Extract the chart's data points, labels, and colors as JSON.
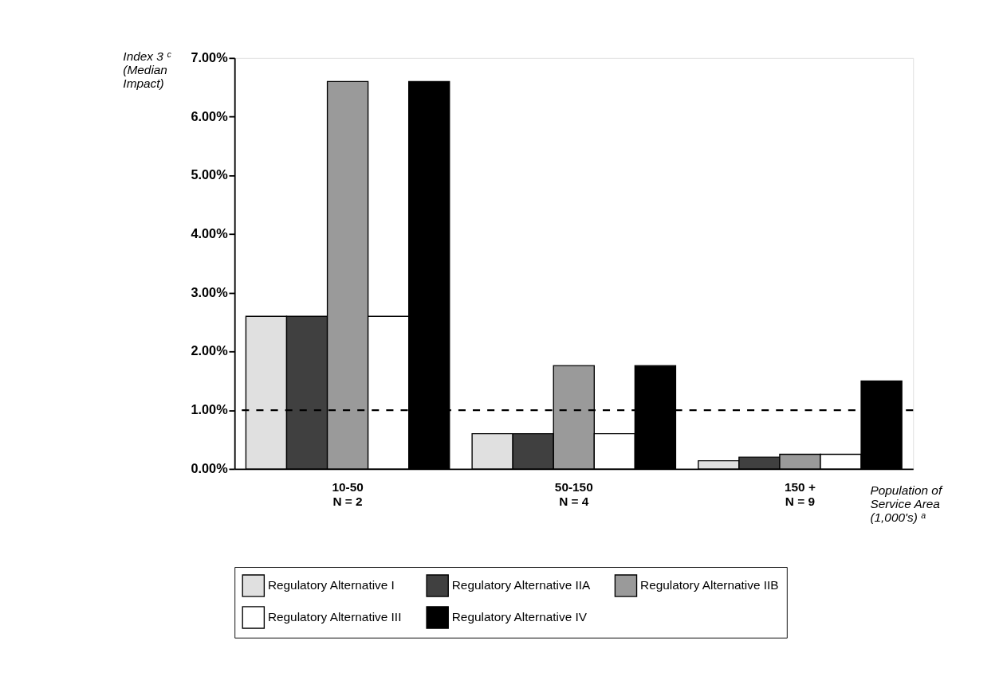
{
  "chart_data": {
    "type": "bar",
    "ylabel": "Index 3 ᶜ\n(Median\nImpact)",
    "xlabel": "Population of\nService Area\n(1,000's) ᵃ",
    "categories": [
      "10-50\nN = 2",
      "50-150\nN = 4",
      "150 +\nN = 9"
    ],
    "series": [
      {
        "name": "Regulatory Alternative I",
        "color": "#e0e0e0",
        "values": [
          2.6,
          0.6,
          0.14
        ]
      },
      {
        "name": "Regulatory Alternative IIA",
        "color": "#404040",
        "values": [
          2.6,
          0.6,
          0.2
        ]
      },
      {
        "name": "Regulatory Alternative IIB",
        "color": "#9a9a9a",
        "values": [
          6.6,
          1.76,
          0.25
        ]
      },
      {
        "name": "Regulatory Alternative III",
        "color": "#ffffff",
        "values": [
          2.6,
          0.6,
          0.25
        ]
      },
      {
        "name": "Regulatory Alternative IV",
        "color": "#000000",
        "values": [
          6.6,
          1.76,
          1.5
        ]
      }
    ],
    "ylim": [
      0,
      7
    ],
    "yticks": [
      {
        "value": 0,
        "label": "0.00%"
      },
      {
        "value": 1,
        "label": "1.00%"
      },
      {
        "value": 2,
        "label": "2.00%"
      },
      {
        "value": 3,
        "label": "3.00%"
      },
      {
        "value": 4,
        "label": "4.00%"
      },
      {
        "value": 5,
        "label": "5.00%"
      },
      {
        "value": 6,
        "label": "6.00%"
      },
      {
        "value": 7,
        "label": "7.00%"
      }
    ],
    "ref_lines": [
      {
        "axis": "y",
        "value": 1,
        "color": "#000000",
        "line_style": "dashed"
      }
    ],
    "grid": false,
    "legend": "bottom"
  }
}
